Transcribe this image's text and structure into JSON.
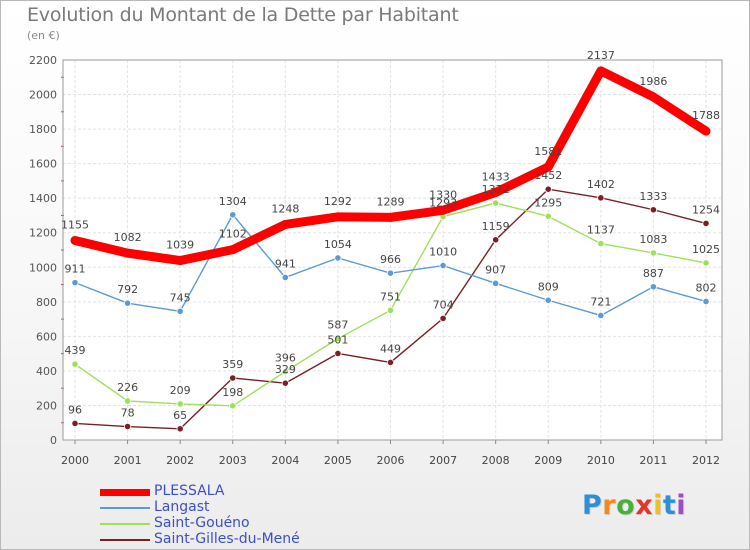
{
  "chart_data": {
    "type": "line",
    "title": "Evolution du Montant de la Dette par Habitant",
    "subtitle": "(en €)",
    "xlabel": "",
    "ylabel": "",
    "x": [
      "2000",
      "2001",
      "2002",
      "2003",
      "2004",
      "2005",
      "2006",
      "2007",
      "2008",
      "2009",
      "2010",
      "2011",
      "2012"
    ],
    "ylim": [
      0,
      2200
    ],
    "yticks": [
      0,
      200,
      400,
      600,
      800,
      1000,
      1200,
      1400,
      1600,
      1800,
      2000,
      2200
    ],
    "yticks_labels": [
      "0",
      "200",
      "400",
      "600",
      "800",
      "1000",
      "1200",
      "1400",
      "1600",
      "1800",
      "2000",
      "2200"
    ],
    "grid": true,
    "legend_position": "bottom-left",
    "series": [
      {
        "name": "PLESSALA",
        "color": "#ff0000",
        "values": [
          1155,
          1082,
          1039,
          1102,
          1248,
          1292,
          1289,
          1330,
          1433,
          1581,
          2137,
          1986,
          1788
        ],
        "labels": [
          "1155",
          "1082",
          "1039",
          "1102",
          "1248",
          "1292",
          "1289",
          "1330",
          "1433",
          "1581",
          "2137",
          "1986",
          "1788"
        ]
      },
      {
        "name": "Langast",
        "color": "#5b9bd5",
        "values": [
          911,
          792,
          745,
          1304,
          941,
          1054,
          966,
          1010,
          907,
          809,
          721,
          887,
          802
        ],
        "labels": [
          "911",
          "792",
          "745",
          "1304",
          "941",
          "1054",
          "966",
          "1010",
          "907",
          "809",
          "721",
          "887",
          "802"
        ]
      },
      {
        "name": "Saint-Gouéno",
        "color": "#9ee05a",
        "values": [
          439,
          226,
          209,
          198,
          396,
          587,
          751,
          1293,
          1372,
          1295,
          1137,
          1083,
          1025
        ],
        "labels": [
          "439",
          "226",
          "209",
          "198",
          "396",
          "587",
          "751",
          "1293",
          "1372",
          "1295",
          "1137",
          "1083",
          "1025"
        ]
      },
      {
        "name": "Saint-Gilles-du-Mené",
        "color": "#7a1f25",
        "values": [
          96,
          78,
          65,
          359,
          329,
          501,
          449,
          704,
          1159,
          1452,
          1402,
          1333,
          1254
        ],
        "labels": [
          "96",
          "78",
          "65",
          "359",
          "329",
          "501",
          "449",
          "704",
          "1159",
          "1452",
          "1402",
          "1333",
          "1254"
        ]
      }
    ]
  },
  "logo": {
    "letters": [
      "P",
      "r",
      "o",
      "x",
      "i",
      "t",
      "i"
    ],
    "colors": [
      "#2e8fd6",
      "#f08a1c",
      "#4cae3c",
      "#e2352b",
      "#f0c020",
      "#2e8fd6",
      "#9c4fc0"
    ]
  }
}
